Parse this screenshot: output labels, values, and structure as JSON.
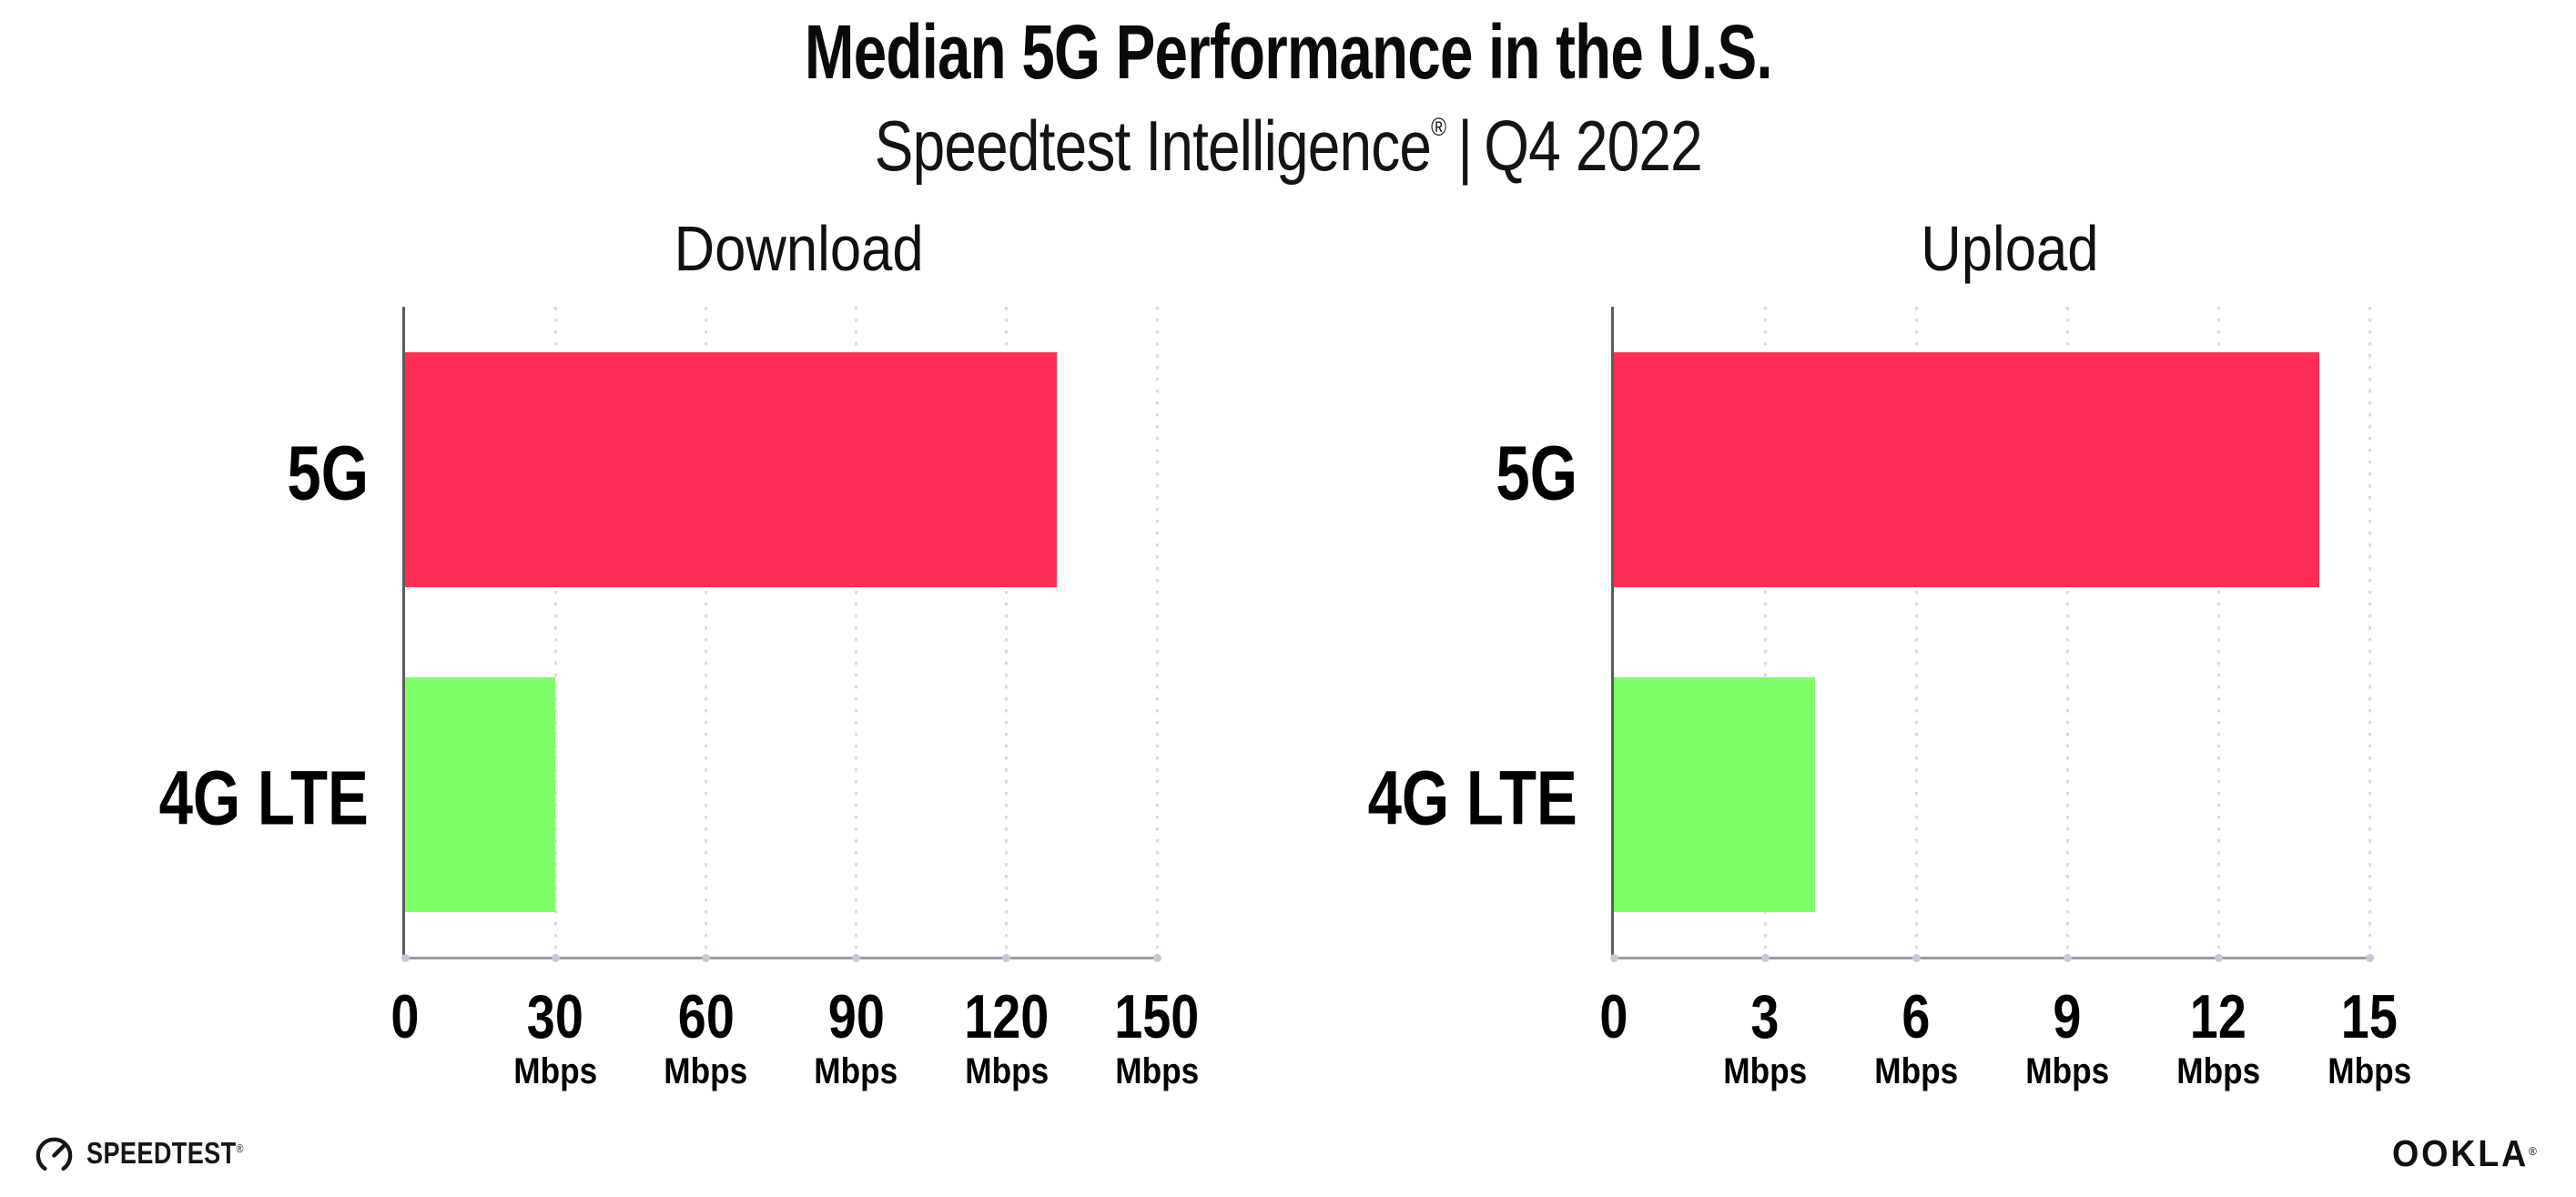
{
  "header": {
    "title": "Median 5G Performance in the U.S.",
    "subtitle_brand": "Speedtest Intelligence",
    "subtitle_reg": "®",
    "subtitle_sep": "|",
    "subtitle_period": "Q4 2022"
  },
  "chart_data": [
    {
      "type": "bar",
      "orientation": "horizontal",
      "title": "Download",
      "categories": [
        "5G",
        "4G LTE"
      ],
      "values": [
        130,
        30
      ],
      "unit": "Mbps",
      "xlim": [
        0,
        150
      ],
      "xticks": [
        0,
        30,
        60,
        90,
        120,
        150
      ],
      "bar_colors": [
        "#FF2E56",
        "#7DFE66"
      ],
      "grid": "dotted-vertical",
      "legend": "none"
    },
    {
      "type": "bar",
      "orientation": "horizontal",
      "title": "Upload",
      "categories": [
        "5G",
        "4G LTE"
      ],
      "values": [
        14,
        4
      ],
      "unit": "Mbps",
      "xlim": [
        0,
        15
      ],
      "xticks": [
        0,
        3,
        6,
        9,
        12,
        15
      ],
      "bar_colors": [
        "#FF2E56",
        "#7DFE66"
      ],
      "grid": "dotted-vertical",
      "legend": "none"
    }
  ],
  "colors": {
    "bar_5g": "#FF2E56",
    "bar_4g_lte": "#7DFE66",
    "gridline": "#dadae6",
    "x_axis": "#9a9aa2",
    "y_axis": "#5c5c5c",
    "text": "#000000"
  },
  "footer": {
    "speedtest_label": "SPEEDTEST",
    "speedtest_mark": "®",
    "ookla_label": "OOKLA",
    "ookla_mark": "®"
  }
}
